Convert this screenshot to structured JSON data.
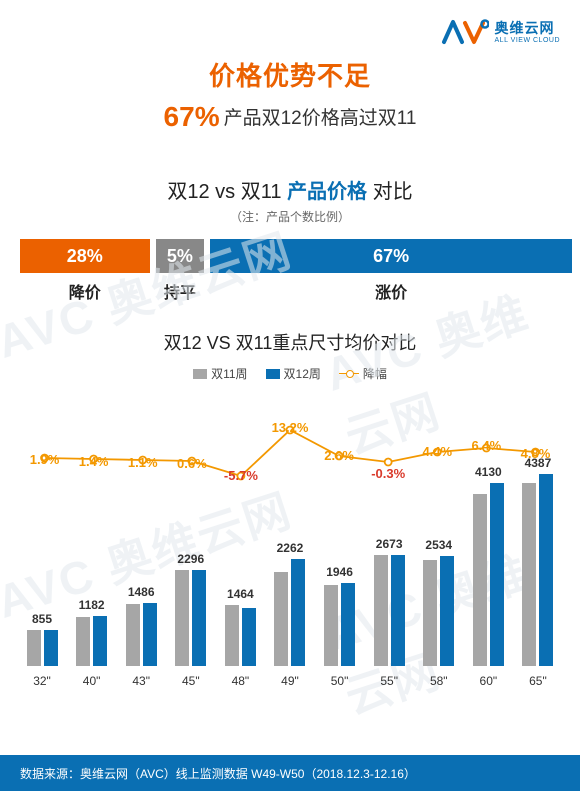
{
  "logo": {
    "avc": "AVC",
    "cn": "奥维云网",
    "en": "ALL VIEW CLOUD",
    "color": "#0a6fb3"
  },
  "title": "价格优势不足",
  "subtitle_pct": "67%",
  "subtitle_text": "产品双12价格高过双11",
  "section1": {
    "title_pre": "双12 vs 双11 ",
    "title_hl": "产品价格",
    "title_post": " 对比",
    "note": "（注：产品个数比例）",
    "segments": [
      {
        "pct": "28%",
        "label": "降价",
        "width": 24,
        "color": "#eb6100"
      },
      {
        "pct": "5%",
        "label": "持平",
        "width": 9,
        "color": "#888888"
      },
      {
        "pct": "67%",
        "label": "涨价",
        "width": 67,
        "color": "#0a6fb3"
      }
    ]
  },
  "chart": {
    "title": "双12 VS 双11重点尺寸均价对比",
    "legend": {
      "s1": "双11周",
      "s2": "双12周",
      "line": "降幅"
    },
    "colors": {
      "s1": "#a6a6a6",
      "s2": "#0a6fb3",
      "line": "#f39800",
      "neg": "#d93a2b"
    },
    "ymax": 4800,
    "bar_area_h": 200,
    "categories": [
      "32\"",
      "40\"",
      "43\"",
      "45\"",
      "48\"",
      "49\"",
      "50\"",
      "55\"",
      "58\"",
      "60\"",
      "65\""
    ],
    "labels": [
      855,
      1182,
      1486,
      2296,
      1464,
      2262,
      1946,
      2673,
      2534,
      4130,
      4387
    ],
    "w11": [
      855,
      1182,
      1486,
      2296,
      1464,
      2262,
      1946,
      2673,
      2534,
      4130,
      4387
    ],
    "w12": [
      871,
      1199,
      1502,
      2310,
      1381,
      2561,
      1997,
      2665,
      2646,
      4394,
      4598
    ],
    "pct": [
      "1.9%",
      "1.4%",
      "1.1%",
      "0.6%",
      "-5.7%",
      "13.2%",
      "2.6%",
      "-0.3%",
      "4.4%",
      "6.4%",
      "4.8%"
    ],
    "pct_y": [
      64,
      66,
      67,
      68,
      80,
      32,
      60,
      78,
      56,
      50,
      58
    ],
    "line_y": [
      70,
      71,
      72,
      73,
      88,
      42,
      68,
      74,
      64,
      60,
      64
    ]
  },
  "footer": "数据来源：奥维云网（AVC）线上监测数据 W49-W50（2018.12.3-12.16）",
  "watermark": "AVC 奥维云网"
}
